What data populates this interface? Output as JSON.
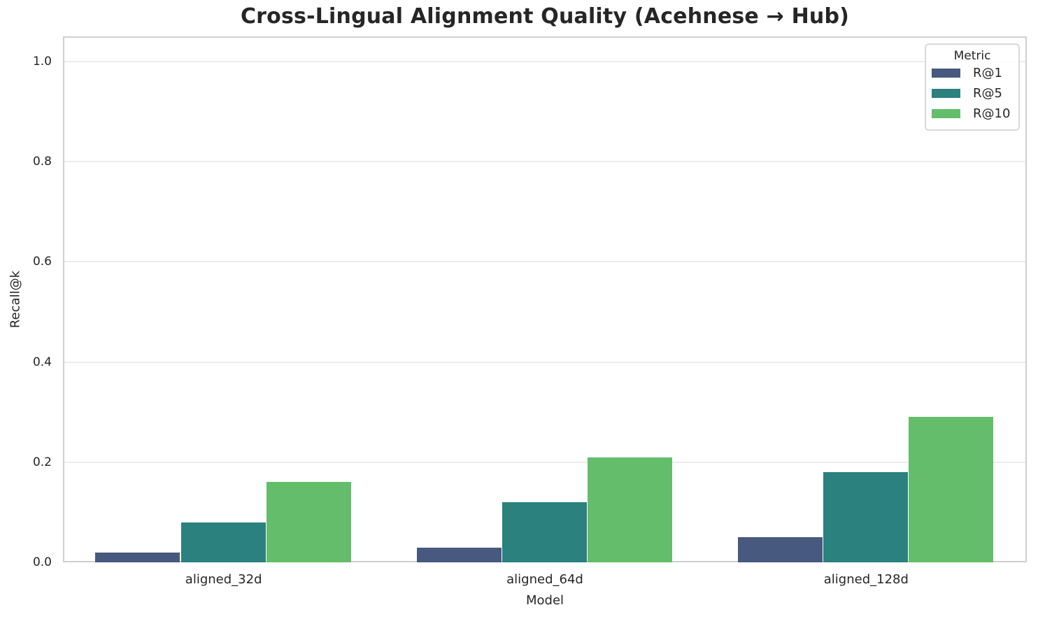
{
  "chart_data": {
    "type": "bar",
    "title": "Cross-Lingual Alignment Quality (Acehnese → Hub)",
    "xlabel": "Model",
    "ylabel": "Recall@k",
    "categories": [
      "aligned_32d",
      "aligned_64d",
      "aligned_128d"
    ],
    "series": [
      {
        "name": "R@1",
        "color": "#47597E",
        "values": [
          0.02,
          0.03,
          0.05
        ]
      },
      {
        "name": "R@5",
        "color": "#2A817E",
        "values": [
          0.08,
          0.12,
          0.18
        ]
      },
      {
        "name": "R@10",
        "color": "#63BD6A",
        "values": [
          0.16,
          0.21,
          0.29
        ]
      }
    ],
    "ylim": [
      0,
      1.05
    ],
    "yticks": [
      0.0,
      0.2,
      0.4,
      0.6,
      0.8,
      1.0
    ],
    "ytick_labels": [
      "0.0",
      "0.2",
      "0.4",
      "0.6",
      "0.8",
      "1.0"
    ],
    "grid": true,
    "legend": {
      "title": "Metric",
      "position": "upper right"
    }
  },
  "theme": {
    "background": "#ffffff",
    "text_color": "#262626",
    "grid_color": "#ececec",
    "spine_color": "#cfcfcf",
    "legend_border": "#d9d9d9"
  }
}
